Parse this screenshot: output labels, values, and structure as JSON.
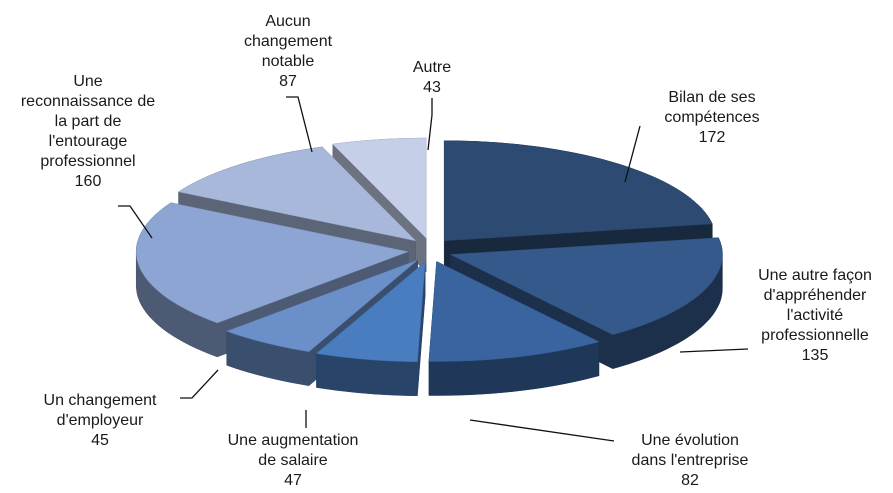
{
  "chart_data": {
    "type": "pie3d",
    "categories": [
      "Bilan de ses\ncompétences",
      "Une autre façon\nd'appréhender\nl'activité\nprofessionnelle",
      "Une évolution\ndans l'entreprise",
      "Une augmentation\nde salaire",
      "Un changement\nd'employeur",
      "Une\nreconnaissance de\nla part de\nl'entourage\nprofessionnel",
      "Aucun\nchangement\nnotable",
      "Autre"
    ],
    "values": [
      172,
      135,
      82,
      47,
      45,
      160,
      87,
      43
    ],
    "colors": [
      "#2d4b72",
      "#35598a",
      "#3a64a0",
      "#4a7cc0",
      "#6b8fc9",
      "#8ca5d3",
      "#a8b8da",
      "#c5d0e8"
    ]
  }
}
